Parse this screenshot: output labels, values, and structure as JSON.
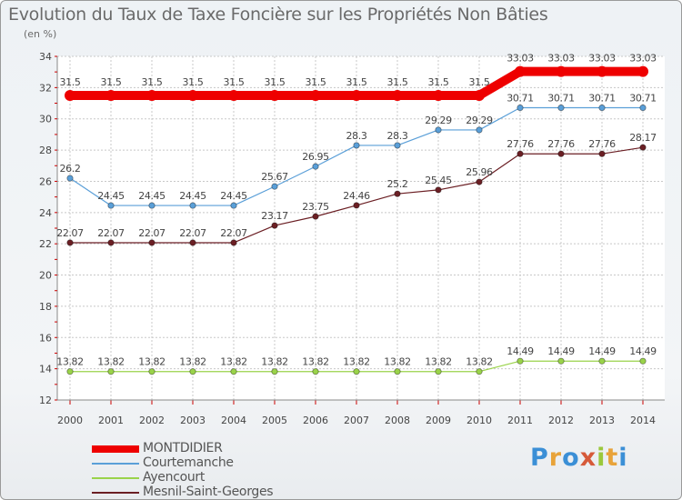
{
  "title": "Evolution du Taux de Taxe Foncière sur les Propriétés Non Bâties",
  "unit_label": "(en %)",
  "logo": {
    "text": "Proxiti",
    "letter_colors": [
      "#3b8fd6",
      "#e8a33a",
      "#3b8fd6",
      "#d65a3a",
      "#9bc83c",
      "#e8a33a",
      "#3b8fd6"
    ]
  },
  "chart_data": {
    "type": "line",
    "title": "Evolution du Taux de Taxe Foncière sur les Propriétés Non Bâties",
    "ylabel": "(en %)",
    "x": [
      "2000",
      "2001",
      "2002",
      "2003",
      "2004",
      "2005",
      "2006",
      "2007",
      "2008",
      "2009",
      "2010",
      "2011",
      "2012",
      "2013",
      "2014"
    ],
    "ylim": [
      12,
      34
    ],
    "yticks": [
      12,
      14,
      16,
      18,
      20,
      22,
      24,
      26,
      28,
      30,
      32,
      34
    ],
    "grid": true,
    "legend_position": "bottom-left",
    "series": [
      {
        "name": "MONTDIDIER",
        "color": "#ee0000",
        "values": [
          31.5,
          31.5,
          31.5,
          31.5,
          31.5,
          31.5,
          31.5,
          31.5,
          31.5,
          31.5,
          31.5,
          33.03,
          33.03,
          33.03,
          33.03
        ],
        "labels": [
          "31.5",
          "31.5",
          "31.5",
          "31.5",
          "31.5",
          "31.5",
          "31.5",
          "31.5",
          "31.5",
          "31.5",
          "31.5",
          "33.03",
          "33.03",
          "33.03",
          "33.03"
        ]
      },
      {
        "name": "Courtemanche",
        "color": "#5a9fd8",
        "values": [
          26.2,
          24.45,
          24.45,
          24.45,
          24.45,
          25.67,
          26.95,
          28.3,
          28.3,
          29.29,
          29.29,
          30.71,
          30.71,
          30.71,
          30.71
        ],
        "labels": [
          "26.2",
          "24.45",
          "24.45",
          "24.45",
          "24.45",
          "25.67",
          "26.95",
          "28.3",
          "28.3",
          "29.29",
          "29.29",
          "30.71",
          "30.71",
          "30.71",
          "30.71"
        ]
      },
      {
        "name": "Ayencourt",
        "color": "#9ad34a",
        "values": [
          13.82,
          13.82,
          13.82,
          13.82,
          13.82,
          13.82,
          13.82,
          13.82,
          13.82,
          13.82,
          13.82,
          14.49,
          14.49,
          14.49,
          14.49
        ],
        "labels": [
          "13.82",
          "13.82",
          "13.82",
          "13.82",
          "13.82",
          "13.82",
          "13.82",
          "13.82",
          "13.82",
          "13.82",
          "13.82",
          "14.49",
          "14.49",
          "14.49",
          "14.49"
        ]
      },
      {
        "name": "Mesnil-Saint-Georges",
        "color": "#6b1f24",
        "values": [
          22.07,
          22.07,
          22.07,
          22.07,
          22.07,
          23.17,
          23.75,
          24.46,
          25.2,
          25.45,
          25.96,
          27.76,
          27.76,
          27.76,
          28.17
        ],
        "labels": [
          "22.07",
          "22.07",
          "22.07",
          "22.07",
          "22.07",
          "23.17",
          "23.75",
          "24.46",
          "25.2",
          "25.45",
          "25.96",
          "27.76",
          "27.76",
          "27.76",
          "28.17"
        ]
      }
    ]
  }
}
